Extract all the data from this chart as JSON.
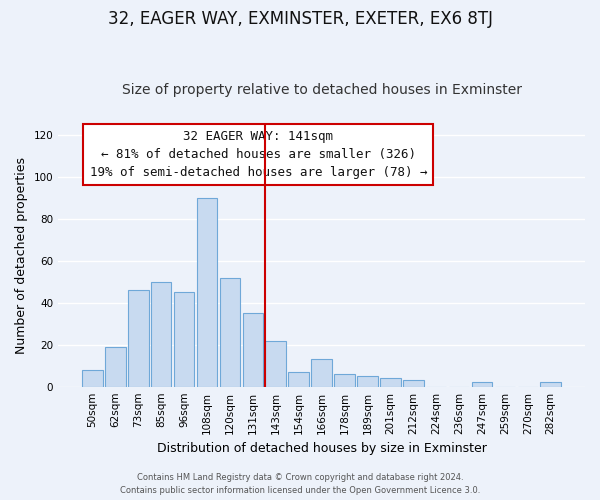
{
  "title": "32, EAGER WAY, EXMINSTER, EXETER, EX6 8TJ",
  "subtitle": "Size of property relative to detached houses in Exminster",
  "xlabel": "Distribution of detached houses by size in Exminster",
  "ylabel": "Number of detached properties",
  "bar_labels": [
    "50sqm",
    "62sqm",
    "73sqm",
    "85sqm",
    "96sqm",
    "108sqm",
    "120sqm",
    "131sqm",
    "143sqm",
    "154sqm",
    "166sqm",
    "178sqm",
    "189sqm",
    "201sqm",
    "212sqm",
    "224sqm",
    "236sqm",
    "247sqm",
    "259sqm",
    "270sqm",
    "282sqm"
  ],
  "bar_heights": [
    8,
    19,
    46,
    50,
    45,
    90,
    52,
    35,
    22,
    7,
    13,
    6,
    5,
    4,
    3,
    0,
    0,
    2,
    0,
    0,
    2
  ],
  "bar_color": "#c8daf0",
  "bar_edge_color": "#6fa8d8",
  "vline_index": 8,
  "vline_color": "#cc0000",
  "annotation_title": "32 EAGER WAY: 141sqm",
  "annotation_line1": "← 81% of detached houses are smaller (326)",
  "annotation_line2": "19% of semi-detached houses are larger (78) →",
  "annotation_box_facecolor": "#ffffff",
  "annotation_box_edgecolor": "#cc0000",
  "ylim": [
    0,
    125
  ],
  "yticks": [
    0,
    20,
    40,
    60,
    80,
    100,
    120
  ],
  "footer1": "Contains HM Land Registry data © Crown copyright and database right 2024.",
  "footer2": "Contains public sector information licensed under the Open Government Licence 3.0.",
  "background_color": "#edf2fa",
  "grid_color": "#ffffff",
  "title_fontsize": 12,
  "subtitle_fontsize": 10,
  "annotation_fontsize": 9,
  "axis_label_fontsize": 9,
  "tick_fontsize": 7.5,
  "footer_fontsize": 6
}
